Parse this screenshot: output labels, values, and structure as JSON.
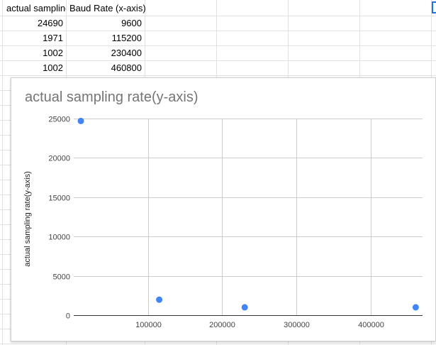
{
  "spreadsheet": {
    "headers": [
      "actual sampling rate(y-axis)",
      "Baud Rate (x-axis)"
    ],
    "rows": [
      [
        "24690",
        "9600"
      ],
      [
        "1971",
        "115200"
      ],
      [
        "1002",
        "230400"
      ],
      [
        "1002",
        "460800"
      ]
    ]
  },
  "chart_data": {
    "type": "scatter",
    "title": "actual sampling rate(y-axis)",
    "xlabel": "",
    "ylabel": "actual sampling rate(y-axis)",
    "x": [
      9600,
      115200,
      230400,
      460800
    ],
    "y": [
      24690,
      1971,
      1002,
      1002
    ],
    "xlim": [
      0,
      470000
    ],
    "ylim": [
      0,
      25000
    ],
    "xticks": [
      100000,
      200000,
      300000,
      400000
    ],
    "yticks": [
      0,
      5000,
      10000,
      15000,
      20000,
      25000
    ],
    "xtick_labels": [
      "100000",
      "200000",
      "300000",
      "400000"
    ],
    "ytick_labels": [
      "0",
      "5000",
      "10000",
      "15000",
      "20000",
      "25000"
    ],
    "grid": true,
    "legend": "none",
    "point_color": "#4285f4"
  }
}
